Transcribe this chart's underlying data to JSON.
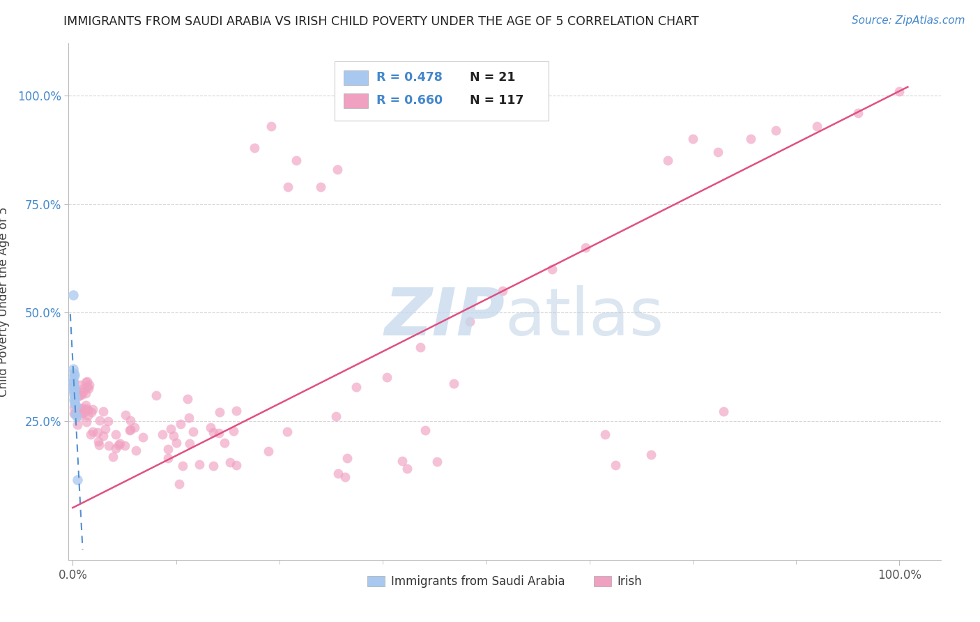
{
  "title": "IMMIGRANTS FROM SAUDI ARABIA VS IRISH CHILD POVERTY UNDER THE AGE OF 5 CORRELATION CHART",
  "source": "Source: ZipAtlas.com",
  "ylabel": "Child Poverty Under the Age of 5",
  "legend_label1": "Immigrants from Saudi Arabia",
  "legend_label2": "Irish",
  "R1": "0.478",
  "N1": "21",
  "R2": "0.660",
  "N2": "117",
  "blue_color": "#A8C8F0",
  "pink_color": "#F0A0C0",
  "blue_line_color": "#5590D0",
  "pink_line_color": "#E05080",
  "title_color": "#222222",
  "source_color": "#4488CC",
  "axis_tick_color_y": "#4488CC",
  "axis_tick_color_x": "#555555",
  "ylabel_color": "#444444",
  "grid_color": "#CCCCCC",
  "blue_x": [
    0.0002,
    0.0003,
    0.0004,
    0.0005,
    0.0006,
    0.0007,
    0.0009,
    0.001,
    0.0011,
    0.0013,
    0.0015,
    0.0017,
    0.002,
    0.002,
    0.0022,
    0.0025,
    0.003,
    0.003,
    0.004,
    0.005,
    0.006
  ],
  "blue_y": [
    0.54,
    0.37,
    0.34,
    0.33,
    0.35,
    0.34,
    0.32,
    0.36,
    0.33,
    0.32,
    0.31,
    0.3,
    0.355,
    0.325,
    0.29,
    0.295,
    0.305,
    0.265,
    0.285,
    0.26,
    0.115
  ],
  "blue_line_x0": -0.003,
  "blue_line_x1": 0.012,
  "pink_line_x0": 0.0,
  "pink_line_x1": 1.01,
  "pink_line_y0": 0.05,
  "pink_line_y1": 1.02,
  "xlim": [
    -0.005,
    1.05
  ],
  "ylim": [
    -0.07,
    1.12
  ],
  "xticks": [
    0.0,
    1.0
  ],
  "yticks": [
    0.25,
    0.5,
    0.75,
    1.0
  ],
  "xticklabels": [
    "0.0%",
    "100.0%"
  ],
  "yticklabels": [
    "25.0%",
    "50.0%",
    "75.0%",
    "100.0%"
  ]
}
